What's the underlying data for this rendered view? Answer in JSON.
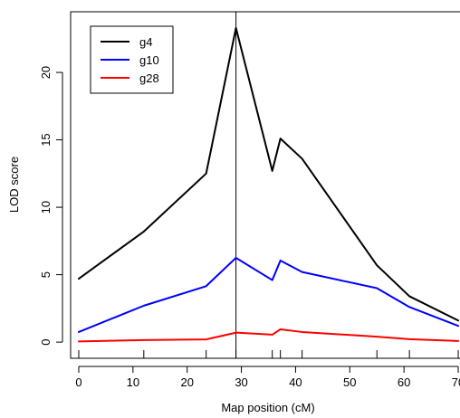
{
  "chart_data": {
    "type": "line",
    "xlabel": "Map position (cM)",
    "ylabel": "LOD score",
    "xlim": [
      -1.5,
      71.5
    ],
    "ylim": [
      -1.2,
      24.5
    ],
    "x_ticks": [
      0,
      10,
      20,
      30,
      40,
      50,
      60,
      70
    ],
    "y_ticks": [
      0,
      5,
      10,
      15,
      20
    ],
    "vline_x": 29,
    "markers_x": [
      0,
      12,
      23.5,
      29,
      35.7,
      37.2,
      41.2,
      55,
      61,
      70
    ],
    "legend_position": "top-left",
    "series": [
      {
        "name": "g4",
        "color": "#000000",
        "points": [
          [
            0,
            4.7
          ],
          [
            12,
            8.2
          ],
          [
            23.5,
            12.5
          ],
          [
            29,
            23.3
          ],
          [
            35.7,
            12.7
          ],
          [
            37.2,
            15.1
          ],
          [
            41.2,
            13.6
          ],
          [
            55,
            5.7
          ],
          [
            61,
            3.4
          ],
          [
            70,
            1.6
          ]
        ]
      },
      {
        "name": "g10",
        "color": "#0000ff",
        "points": [
          [
            0,
            0.75
          ],
          [
            12,
            2.7
          ],
          [
            23.5,
            4.15
          ],
          [
            29,
            6.25
          ],
          [
            35.7,
            4.6
          ],
          [
            37.2,
            6.05
          ],
          [
            41.2,
            5.2
          ],
          [
            55,
            4.0
          ],
          [
            61,
            2.6
          ],
          [
            70,
            1.2
          ]
        ]
      },
      {
        "name": "g28",
        "color": "#ff0000",
        "points": [
          [
            0,
            0.05
          ],
          [
            12,
            0.15
          ],
          [
            23.5,
            0.2
          ],
          [
            29,
            0.7
          ],
          [
            35.7,
            0.55
          ],
          [
            37.2,
            0.95
          ],
          [
            41.2,
            0.75
          ],
          [
            55,
            0.4
          ],
          [
            61,
            0.22
          ],
          [
            70,
            0.08
          ]
        ]
      }
    ]
  }
}
